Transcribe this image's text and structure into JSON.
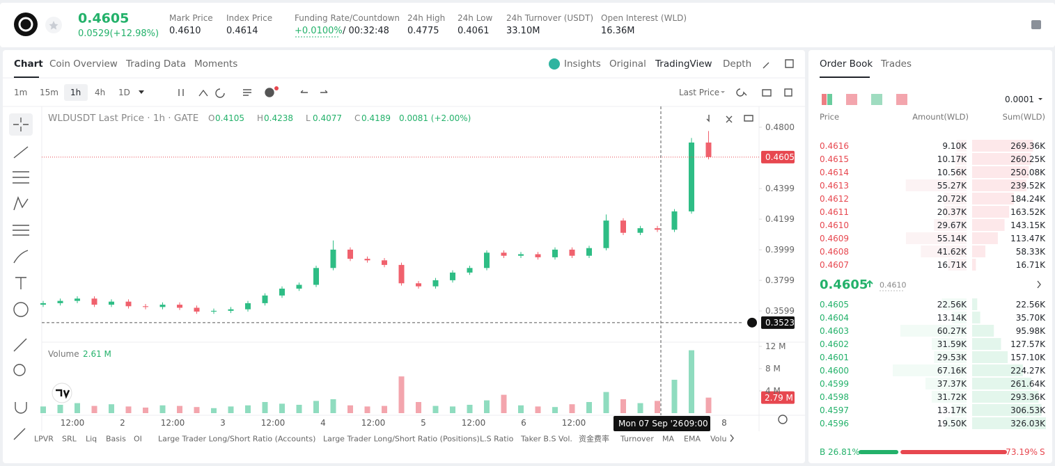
{
  "header": {
    "price": "0.4605",
    "change": "0.0529(+12.98%)",
    "stats": [
      {
        "label": "Mark Price",
        "value": "0.4610"
      },
      {
        "label": "Index Price",
        "value": "0.4614"
      },
      {
        "label": "Funding Rate/Countdown",
        "value": "+0.0100%",
        "extra": "/ 00:32:48"
      },
      {
        "label": "24h High",
        "value": "0.4775"
      },
      {
        "label": "24h Low",
        "value": "0.4061"
      },
      {
        "label": "24h Turnover (USDT)",
        "value": "33.10M"
      },
      {
        "label": "Open Interest (WLD)",
        "value": "16.36M"
      }
    ]
  },
  "tabs": [
    "Chart",
    "Coin Overview",
    "Trading Data",
    "Moments"
  ],
  "views": [
    "Insights",
    "Original",
    "TradingView",
    "Depth"
  ],
  "intervals": [
    "1m",
    "15m",
    "1h",
    "4h",
    "1D"
  ],
  "price_source": "Last Price",
  "legend": {
    "symbol": "WLDUSDT Last Price · 1h · GATE",
    "fields": [
      {
        "k": "O",
        "v": "0.4105"
      },
      {
        "k": "H",
        "v": "0.4238"
      },
      {
        "k": "L",
        "v": "0.4077"
      },
      {
        "k": "C",
        "v": "0.4189"
      }
    ],
    "change": "0.0081 (+2.00%)"
  },
  "price_chart": {
    "type": "candlestick",
    "open": [
      0.364,
      0.365,
      0.3665,
      0.368,
      0.364,
      0.366,
      0.363,
      0.3625,
      0.364,
      0.362,
      0.3595,
      0.36,
      0.361,
      0.365,
      0.37,
      0.3745,
      0.377,
      0.388,
      0.4,
      0.394,
      0.393,
      0.39,
      0.378,
      0.376,
      0.38,
      0.385,
      0.388,
      0.398,
      0.396,
      0.397,
      0.395,
      0.4,
      0.396,
      0.401,
      0.419,
      0.411,
      0.414,
      0.413,
      0.425,
      0.47
    ],
    "high": [
      0.3665,
      0.368,
      0.3695,
      0.3695,
      0.3675,
      0.3675,
      0.3645,
      0.3655,
      0.3655,
      0.3635,
      0.3615,
      0.3625,
      0.3665,
      0.3715,
      0.376,
      0.3785,
      0.3895,
      0.406,
      0.4015,
      0.3955,
      0.3945,
      0.3915,
      0.3795,
      0.3815,
      0.3865,
      0.3895,
      0.3995,
      0.3995,
      0.3985,
      0.3985,
      0.4015,
      0.4015,
      0.4025,
      0.423,
      0.4205,
      0.4155,
      0.4155,
      0.4265,
      0.473,
      0.4775
    ],
    "low": [
      0.3625,
      0.3635,
      0.365,
      0.3625,
      0.3625,
      0.3615,
      0.361,
      0.361,
      0.3605,
      0.358,
      0.358,
      0.3585,
      0.3595,
      0.3635,
      0.3685,
      0.373,
      0.3755,
      0.3865,
      0.3925,
      0.3915,
      0.3885,
      0.3765,
      0.3745,
      0.3745,
      0.3785,
      0.3835,
      0.3865,
      0.3945,
      0.3945,
      0.3935,
      0.3935,
      0.3945,
      0.3945,
      0.3995,
      0.4095,
      0.4095,
      0.4115,
      0.4115,
      0.4235,
      0.459
    ],
    "close": [
      0.365,
      0.3665,
      0.368,
      0.364,
      0.366,
      0.363,
      0.3625,
      0.364,
      0.362,
      0.3595,
      0.36,
      0.361,
      0.365,
      0.37,
      0.3745,
      0.377,
      0.388,
      0.4,
      0.394,
      0.393,
      0.39,
      0.378,
      0.376,
      0.38,
      0.385,
      0.388,
      0.398,
      0.396,
      0.397,
      0.395,
      0.4,
      0.396,
      0.401,
      0.419,
      0.411,
      0.414,
      0.413,
      0.425,
      0.47,
      0.4605
    ],
    "ylim": [
      0.3404,
      0.4927
    ],
    "yticks": [
      {
        "value": 0.48,
        "label": "0.4800"
      },
      0.4399,
      0.4199,
      0.3999,
      0.3799,
      0.3599
    ],
    "last_price": {
      "value": 0.4605,
      "label": "0.4605"
    },
    "crosshair": {
      "value": 0.3523,
      "label": "0.3523",
      "date": "Mon 07 Sep '26",
      "time": "09:00"
    },
    "x_labels": [
      "12:00",
      "2",
      "12:00",
      "3",
      "12:00",
      "4",
      "12:00",
      "5",
      "12:00",
      "6",
      "12:00",
      "8"
    ],
    "volume": {
      "title": "Volume",
      "last": "2.61 M",
      "values": [
        1.2,
        1.5,
        1.8,
        1.3,
        1.6,
        1.2,
        1.0,
        1.4,
        1.3,
        1.1,
        0.9,
        1.2,
        1.4,
        2.0,
        1.7,
        1.5,
        2.2,
        2.5,
        1.4,
        1.2,
        1.3,
        6.6,
        2.0,
        1.3,
        1.2,
        1.5,
        2.3,
        3.3,
        1.4,
        1.2,
        1.1,
        1.6,
        2.0,
        3.8,
        2.5,
        1.8,
        2.2,
        6.0,
        11.3,
        2.79
      ],
      "ylim": [
        0,
        12.5
      ],
      "yticks": [
        {
          "value": 12,
          "label": "12 M"
        },
        {
          "value": 8,
          "label": "8 M"
        },
        {
          "value": 4,
          "label": "4 M"
        }
      ],
      "current": {
        "value": 2.79,
        "label": "2.79 M"
      }
    }
  },
  "indicators": [
    "LPVR",
    "SRL",
    "Liq",
    "Basis",
    "OI",
    "Large Trader Long/Short Ratio (Accounts)",
    "Large Trader Long/Short Ratio (Positions)",
    "L.S Ratio",
    "Taker B.S Vol.",
    "资金费率",
    "Turnover",
    "MA",
    "EMA",
    "Volu"
  ],
  "order_book": {
    "tabs": [
      "Order Book",
      "Trades"
    ],
    "precision": "0.0001",
    "columns": [
      "Price",
      "Amount(WLD)",
      "Sum(WLD)"
    ],
    "asks": [
      {
        "price": "0.4616",
        "amount": "9.10K",
        "sum": "269.36K"
      },
      {
        "price": "0.4615",
        "amount": "10.17K",
        "sum": "260.25K"
      },
      {
        "price": "0.4614",
        "amount": "10.56K",
        "sum": "250.08K"
      },
      {
        "price": "0.4613",
        "amount": "55.27K",
        "sum": "239.52K"
      },
      {
        "price": "0.4612",
        "amount": "20.72K",
        "sum": "184.24K"
      },
      {
        "price": "0.4611",
        "amount": "20.37K",
        "sum": "163.52K"
      },
      {
        "price": "0.4610",
        "amount": "29.67K",
        "sum": "143.15K"
      },
      {
        "price": "0.4609",
        "amount": "55.14K",
        "sum": "113.47K"
      },
      {
        "price": "0.4608",
        "amount": "41.62K",
        "sum": "58.33K"
      },
      {
        "price": "0.4607",
        "amount": "16.71K",
        "sum": "16.71K"
      }
    ],
    "mid": "0.4605",
    "mark": "0.4610",
    "bids": [
      {
        "price": "0.4605",
        "amount": "22.56K",
        "sum": "22.56K"
      },
      {
        "price": "0.4604",
        "amount": "13.14K",
        "sum": "35.70K"
      },
      {
        "price": "0.4603",
        "amount": "60.27K",
        "sum": "95.98K"
      },
      {
        "price": "0.4602",
        "amount": "31.59K",
        "sum": "127.57K"
      },
      {
        "price": "0.4601",
        "amount": "29.53K",
        "sum": "157.10K"
      },
      {
        "price": "0.4600",
        "amount": "67.16K",
        "sum": "224.27K"
      },
      {
        "price": "0.4599",
        "amount": "37.37K",
        "sum": "261.64K"
      },
      {
        "price": "0.4598",
        "amount": "31.72K",
        "sum": "293.36K"
      },
      {
        "price": "0.4597",
        "amount": "13.17K",
        "sum": "306.53K"
      },
      {
        "price": "0.4596",
        "amount": "19.50K",
        "sum": "326.03K"
      }
    ],
    "ratio": {
      "buy_key": "B",
      "buy": "26.81%",
      "sell": "73.19%",
      "sell_key": "S"
    }
  }
}
